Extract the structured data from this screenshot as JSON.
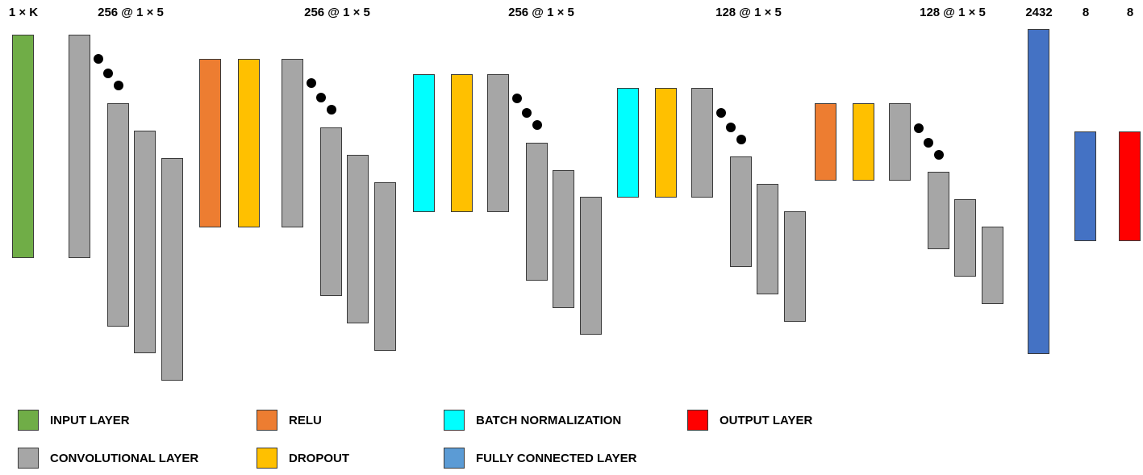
{
  "colors": {
    "input": "#70ad47",
    "conv": "#a6a6a6",
    "relu": "#ed7d31",
    "dropout": "#ffc000",
    "batchnorm": "#00ffff",
    "fc": "#4472c4",
    "fc_legend": "#5b9bd5",
    "output": "#ff0000"
  },
  "headers": [
    "1 × K",
    "256 @ 1 × 5",
    "256 @ 1 × 5",
    "256 @ 1 × 5",
    "128 @ 1 × 5",
    "128 @ 1 × 5",
    "2432",
    "8",
    "8"
  ],
  "legend": [
    {
      "label": "INPUT LAYER",
      "color_key": "input"
    },
    {
      "label": "RELU",
      "color_key": "relu"
    },
    {
      "label": "BATCH NORMALIZATION",
      "color_key": "batchnorm"
    },
    {
      "label": "OUTPUT LAYER",
      "color_key": "output"
    },
    {
      "label": "CONVOLUTIONAL LAYER",
      "color_key": "conv"
    },
    {
      "label": "DROPOUT",
      "color_key": "dropout"
    },
    {
      "label": "FULLY CONNECTED LAYER",
      "color_key": "fc_legend"
    }
  ]
}
